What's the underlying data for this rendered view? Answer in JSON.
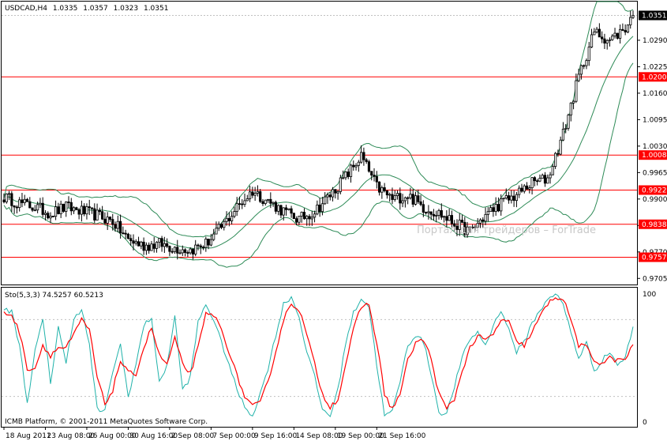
{
  "chart_data": {
    "type": "candlestick",
    "symbol_line": {
      "symbol": "USDCAD,H4",
      "open": "1.0335",
      "high": "1.0357",
      "low": "1.0323",
      "close": "1.0351"
    },
    "price_axis": {
      "ylim": [
        0.969,
        1.0385
      ],
      "ticks": [
        "1.0290",
        "1.0225",
        "1.0160",
        "1.0095",
        "1.0030",
        "0.9965",
        "0.9900",
        "0.9835",
        "0.9770",
        "0.9705"
      ],
      "tick_values": [
        1.029,
        1.0225,
        1.016,
        1.0095,
        1.003,
        0.9965,
        0.99,
        0.9835,
        0.977,
        0.9705
      ]
    },
    "current_price": {
      "value": 1.0351,
      "label": "1.0351",
      "color": "#000000"
    },
    "horizontal_lines": [
      {
        "value": 1.02,
        "label": "1.0200",
        "color": "#ff0000"
      },
      {
        "value": 1.0008,
        "label": "1.0008",
        "color": "#ff0000"
      },
      {
        "value": 0.9922,
        "label": "0.9922",
        "color": "#ff0000"
      },
      {
        "value": 0.9838,
        "label": "0.9838",
        "color": "#ff0000"
      },
      {
        "value": 0.9757,
        "label": "0.9757",
        "color": "#ff0000"
      }
    ],
    "price_anchors": [
      [
        0,
        0.9905
      ],
      [
        6,
        0.989
      ],
      [
        12,
        0.988
      ],
      [
        18,
        0.9865
      ],
      [
        24,
        0.988
      ],
      [
        30,
        0.987
      ],
      [
        36,
        0.986
      ],
      [
        42,
        0.9845
      ],
      [
        48,
        0.98
      ],
      [
        54,
        0.9785
      ],
      [
        60,
        0.979
      ],
      [
        66,
        0.978
      ],
      [
        72,
        0.9775
      ],
      [
        78,
        0.979
      ],
      [
        84,
        0.983
      ],
      [
        90,
        0.988
      ],
      [
        96,
        0.992
      ],
      [
        102,
        0.9895
      ],
      [
        108,
        0.987
      ],
      [
        114,
        0.985
      ],
      [
        120,
        0.987
      ],
      [
        126,
        0.991
      ],
      [
        132,
        0.9955
      ],
      [
        138,
        1.0005
      ],
      [
        144,
        0.993
      ],
      [
        150,
        0.99
      ],
      [
        156,
        0.991
      ],
      [
        162,
        0.988
      ],
      [
        168,
        0.9865
      ],
      [
        174,
        0.984
      ],
      [
        180,
        0.982
      ],
      [
        186,
        0.986
      ],
      [
        192,
        0.989
      ],
      [
        198,
        0.991
      ],
      [
        204,
        0.994
      ],
      [
        210,
        0.995
      ],
      [
        216,
        1.006
      ],
      [
        222,
        1.02
      ],
      [
        228,
        1.031
      ],
      [
        234,
        1.029
      ],
      [
        240,
        1.032
      ],
      [
        243,
        1.0351
      ]
    ],
    "bands": {
      "color": "#2e8b57"
    },
    "stochastic": {
      "label": "Sto(5,3,3) 74.5257 60.5213",
      "k_value": 74.5257,
      "d_value": 60.5213,
      "ylim": [
        0,
        100
      ],
      "ticks": [
        "100",
        "0"
      ],
      "k_color": "#20b2aa",
      "d_color": "#ff0000",
      "k_anchors": [
        [
          0,
          88
        ],
        [
          3,
          86
        ],
        [
          6,
          60
        ],
        [
          9,
          15
        ],
        [
          12,
          55
        ],
        [
          15,
          80
        ],
        [
          18,
          30
        ],
        [
          21,
          75
        ],
        [
          24,
          45
        ],
        [
          27,
          82
        ],
        [
          30,
          88
        ],
        [
          33,
          60
        ],
        [
          36,
          10
        ],
        [
          39,
          8
        ],
        [
          42,
          40
        ],
        [
          45,
          60
        ],
        [
          48,
          20
        ],
        [
          51,
          45
        ],
        [
          54,
          75
        ],
        [
          57,
          82
        ],
        [
          60,
          30
        ],
        [
          63,
          45
        ],
        [
          66,
          82
        ],
        [
          69,
          25
        ],
        [
          72,
          35
        ],
        [
          75,
          78
        ],
        [
          78,
          92
        ],
        [
          81,
          80
        ],
        [
          84,
          62
        ],
        [
          87,
          45
        ],
        [
          90,
          25
        ],
        [
          93,
          12
        ],
        [
          96,
          5
        ],
        [
          99,
          22
        ],
        [
          102,
          42
        ],
        [
          105,
          68
        ],
        [
          108,
          92
        ],
        [
          111,
          98
        ],
        [
          114,
          82
        ],
        [
          117,
          55
        ],
        [
          120,
          35
        ],
        [
          123,
          10
        ],
        [
          126,
          5
        ],
        [
          129,
          25
        ],
        [
          132,
          62
        ],
        [
          135,
          85
        ],
        [
          138,
          97
        ],
        [
          141,
          90
        ],
        [
          144,
          45
        ],
        [
          147,
          5
        ],
        [
          150,
          8
        ],
        [
          153,
          32
        ],
        [
          156,
          60
        ],
        [
          159,
          68
        ],
        [
          162,
          63
        ],
        [
          165,
          38
        ],
        [
          168,
          8
        ],
        [
          171,
          6
        ],
        [
          174,
          28
        ],
        [
          177,
          50
        ],
        [
          180,
          65
        ],
        [
          183,
          70
        ],
        [
          186,
          60
        ],
        [
          189,
          75
        ],
        [
          192,
          88
        ],
        [
          195,
          72
        ],
        [
          198,
          55
        ],
        [
          201,
          62
        ],
        [
          204,
          78
        ],
        [
          207,
          86
        ],
        [
          210,
          97
        ],
        [
          213,
          100
        ],
        [
          216,
          92
        ],
        [
          219,
          70
        ],
        [
          222,
          50
        ],
        [
          225,
          62
        ],
        [
          228,
          40
        ],
        [
          231,
          48
        ],
        [
          234,
          55
        ],
        [
          237,
          45
        ],
        [
          240,
          50
        ],
        [
          243,
          74.5257
        ]
      ],
      "d_anchors": [
        [
          0,
          85
        ],
        [
          3,
          84
        ],
        [
          6,
          70
        ],
        [
          9,
          42
        ],
        [
          12,
          42
        ],
        [
          15,
          60
        ],
        [
          18,
          52
        ],
        [
          21,
          58
        ],
        [
          24,
          58
        ],
        [
          27,
          68
        ],
        [
          30,
          80
        ],
        [
          33,
          72
        ],
        [
          36,
          35
        ],
        [
          39,
          14
        ],
        [
          42,
          25
        ],
        [
          45,
          48
        ],
        [
          48,
          38
        ],
        [
          51,
          38
        ],
        [
          54,
          58
        ],
        [
          57,
          74
        ],
        [
          60,
          52
        ],
        [
          63,
          45
        ],
        [
          66,
          65
        ],
        [
          69,
          45
        ],
        [
          72,
          38
        ],
        [
          75,
          58
        ],
        [
          78,
          84
        ],
        [
          81,
          84
        ],
        [
          84,
          72
        ],
        [
          87,
          55
        ],
        [
          90,
          36
        ],
        [
          93,
          20
        ],
        [
          96,
          12
        ],
        [
          99,
          15
        ],
        [
          102,
          32
        ],
        [
          105,
          55
        ],
        [
          108,
          80
        ],
        [
          111,
          93
        ],
        [
          114,
          88
        ],
        [
          117,
          68
        ],
        [
          120,
          45
        ],
        [
          123,
          22
        ],
        [
          126,
          12
        ],
        [
          129,
          18
        ],
        [
          132,
          45
        ],
        [
          135,
          72
        ],
        [
          138,
          90
        ],
        [
          141,
          92
        ],
        [
          144,
          62
        ],
        [
          147,
          22
        ],
        [
          150,
          10
        ],
        [
          153,
          22
        ],
        [
          156,
          48
        ],
        [
          159,
          62
        ],
        [
          162,
          64
        ],
        [
          165,
          50
        ],
        [
          168,
          22
        ],
        [
          171,
          10
        ],
        [
          174,
          18
        ],
        [
          177,
          40
        ],
        [
          180,
          58
        ],
        [
          183,
          67
        ],
        [
          186,
          64
        ],
        [
          189,
          68
        ],
        [
          192,
          80
        ],
        [
          195,
          78
        ],
        [
          198,
          62
        ],
        [
          201,
          60
        ],
        [
          204,
          70
        ],
        [
          207,
          82
        ],
        [
          210,
          92
        ],
        [
          213,
          98
        ],
        [
          216,
          96
        ],
        [
          219,
          80
        ],
        [
          222,
          60
        ],
        [
          225,
          58
        ],
        [
          228,
          48
        ],
        [
          231,
          46
        ],
        [
          234,
          50
        ],
        [
          237,
          48
        ],
        [
          240,
          49
        ],
        [
          243,
          60.5213
        ]
      ]
    },
    "time_axis": {
      "labels": [
        "18 Aug 2011",
        "23 Aug 08:00",
        "26 Aug 00:00",
        "30 Aug 16:00",
        "2 Sep 08:00",
        "7 Sep 00:00",
        "9 Sep 16:00",
        "14 Sep 08:00",
        "19 Sep 00:00",
        "21 Sep 16:00"
      ],
      "bar_index": [
        0,
        16,
        32,
        48,
        64,
        80,
        96,
        112,
        128,
        144
      ]
    },
    "copyright": "ICMB Platform, © 2001-2011 MetaQuotes Software Corp.",
    "watermark": "Портал для трейдеров – ForTrade",
    "bar_count": 244
  }
}
